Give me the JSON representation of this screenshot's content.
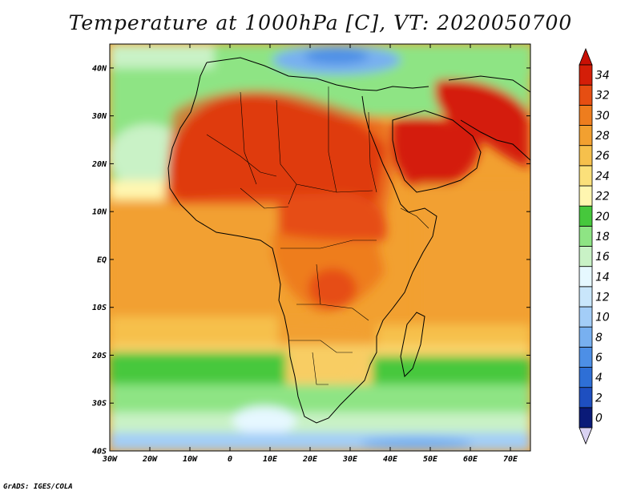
{
  "title": "Temperature at 1000hPa [C], VT: 2020050700",
  "credit": "GrADS: IGES/COLA",
  "map": {
    "lon_range": [
      -30,
      75
    ],
    "lat_range": [
      -40,
      45
    ],
    "lat_ticks": [
      {
        "value": 40,
        "label": "40N"
      },
      {
        "value": 30,
        "label": "30N"
      },
      {
        "value": 20,
        "label": "20N"
      },
      {
        "value": 10,
        "label": "10N"
      },
      {
        "value": 0,
        "label": "EQ"
      },
      {
        "value": -10,
        "label": "10S"
      },
      {
        "value": -20,
        "label": "20S"
      },
      {
        "value": -30,
        "label": "30S"
      },
      {
        "value": -40,
        "label": "40S"
      }
    ],
    "lon_ticks": [
      {
        "value": -30,
        "label": "30W"
      },
      {
        "value": -20,
        "label": "20W"
      },
      {
        "value": -10,
        "label": "10W"
      },
      {
        "value": 0,
        "label": "0"
      },
      {
        "value": 10,
        "label": "10E"
      },
      {
        "value": 20,
        "label": "20E"
      },
      {
        "value": 30,
        "label": "30E"
      },
      {
        "value": 40,
        "label": "40E"
      },
      {
        "value": 50,
        "label": "50E"
      },
      {
        "value": 60,
        "label": "60E"
      },
      {
        "value": 70,
        "label": "70E"
      }
    ]
  },
  "colorbar": {
    "levels": [
      0,
      2,
      4,
      6,
      8,
      10,
      12,
      14,
      16,
      18,
      20,
      22,
      24,
      26,
      28,
      30,
      32,
      34
    ],
    "colors": [
      "#0a1a78",
      "#1e4fc0",
      "#2e6fd6",
      "#4d8fe6",
      "#78b0f0",
      "#a3cdf7",
      "#c9e6fb",
      "#e6f8ff",
      "#c9f2c6",
      "#8ee484",
      "#46c83c",
      "#fff6b0",
      "#fbe07a",
      "#f6c04c",
      "#f2a030",
      "#ee7d1e",
      "#e64e12",
      "#d41e08"
    ],
    "under_color": "#d9d2f2",
    "over_color": "#c81005"
  }
}
